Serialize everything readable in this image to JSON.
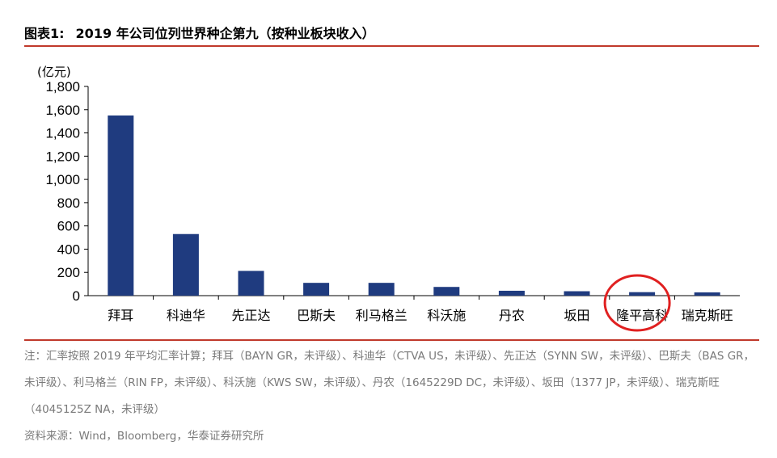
{
  "header": {
    "label": "图表1:",
    "title": "2019 年公司位列世界种企第九（按种业板块收入）"
  },
  "chart_data": {
    "type": "bar",
    "unit": "(亿元)",
    "categories": [
      "拜耳",
      "科迪华",
      "先正达",
      "巴斯夫",
      "利马格兰",
      "科沃施",
      "丹农",
      "坂田",
      "隆平高科",
      "瑞克斯旺"
    ],
    "values": [
      1550,
      530,
      213,
      110,
      110,
      75,
      42,
      38,
      30,
      28
    ],
    "ylim": [
      0,
      1800
    ],
    "yticks": [
      "0",
      "200",
      "400",
      "600",
      "800",
      "1,000",
      "1,200",
      "1,400",
      "1,600",
      "1,800"
    ],
    "bar_color": "#1f3b7f",
    "highlight_color": "#e02020",
    "highlight_category": "隆平高科",
    "grid": false
  },
  "footer": {
    "note": "注：汇率按照 2019 年平均汇率计算；拜耳（BAYN GR，未评级）、科迪华（CTVA US，未评级）、先正达（SYNN SW，未评级）、巴斯夫（BAS GR，未评级）、利马格兰（RIN FP，未评级）、科沃施（KWS SW，未评级）、丹农（1645229D DC，未评级）、坂田（1377 JP，未评级）、瑞克斯旺（4045125Z NA，未评级）",
    "source": "资料来源：Wind，Bloomberg，华泰证券研究所"
  }
}
